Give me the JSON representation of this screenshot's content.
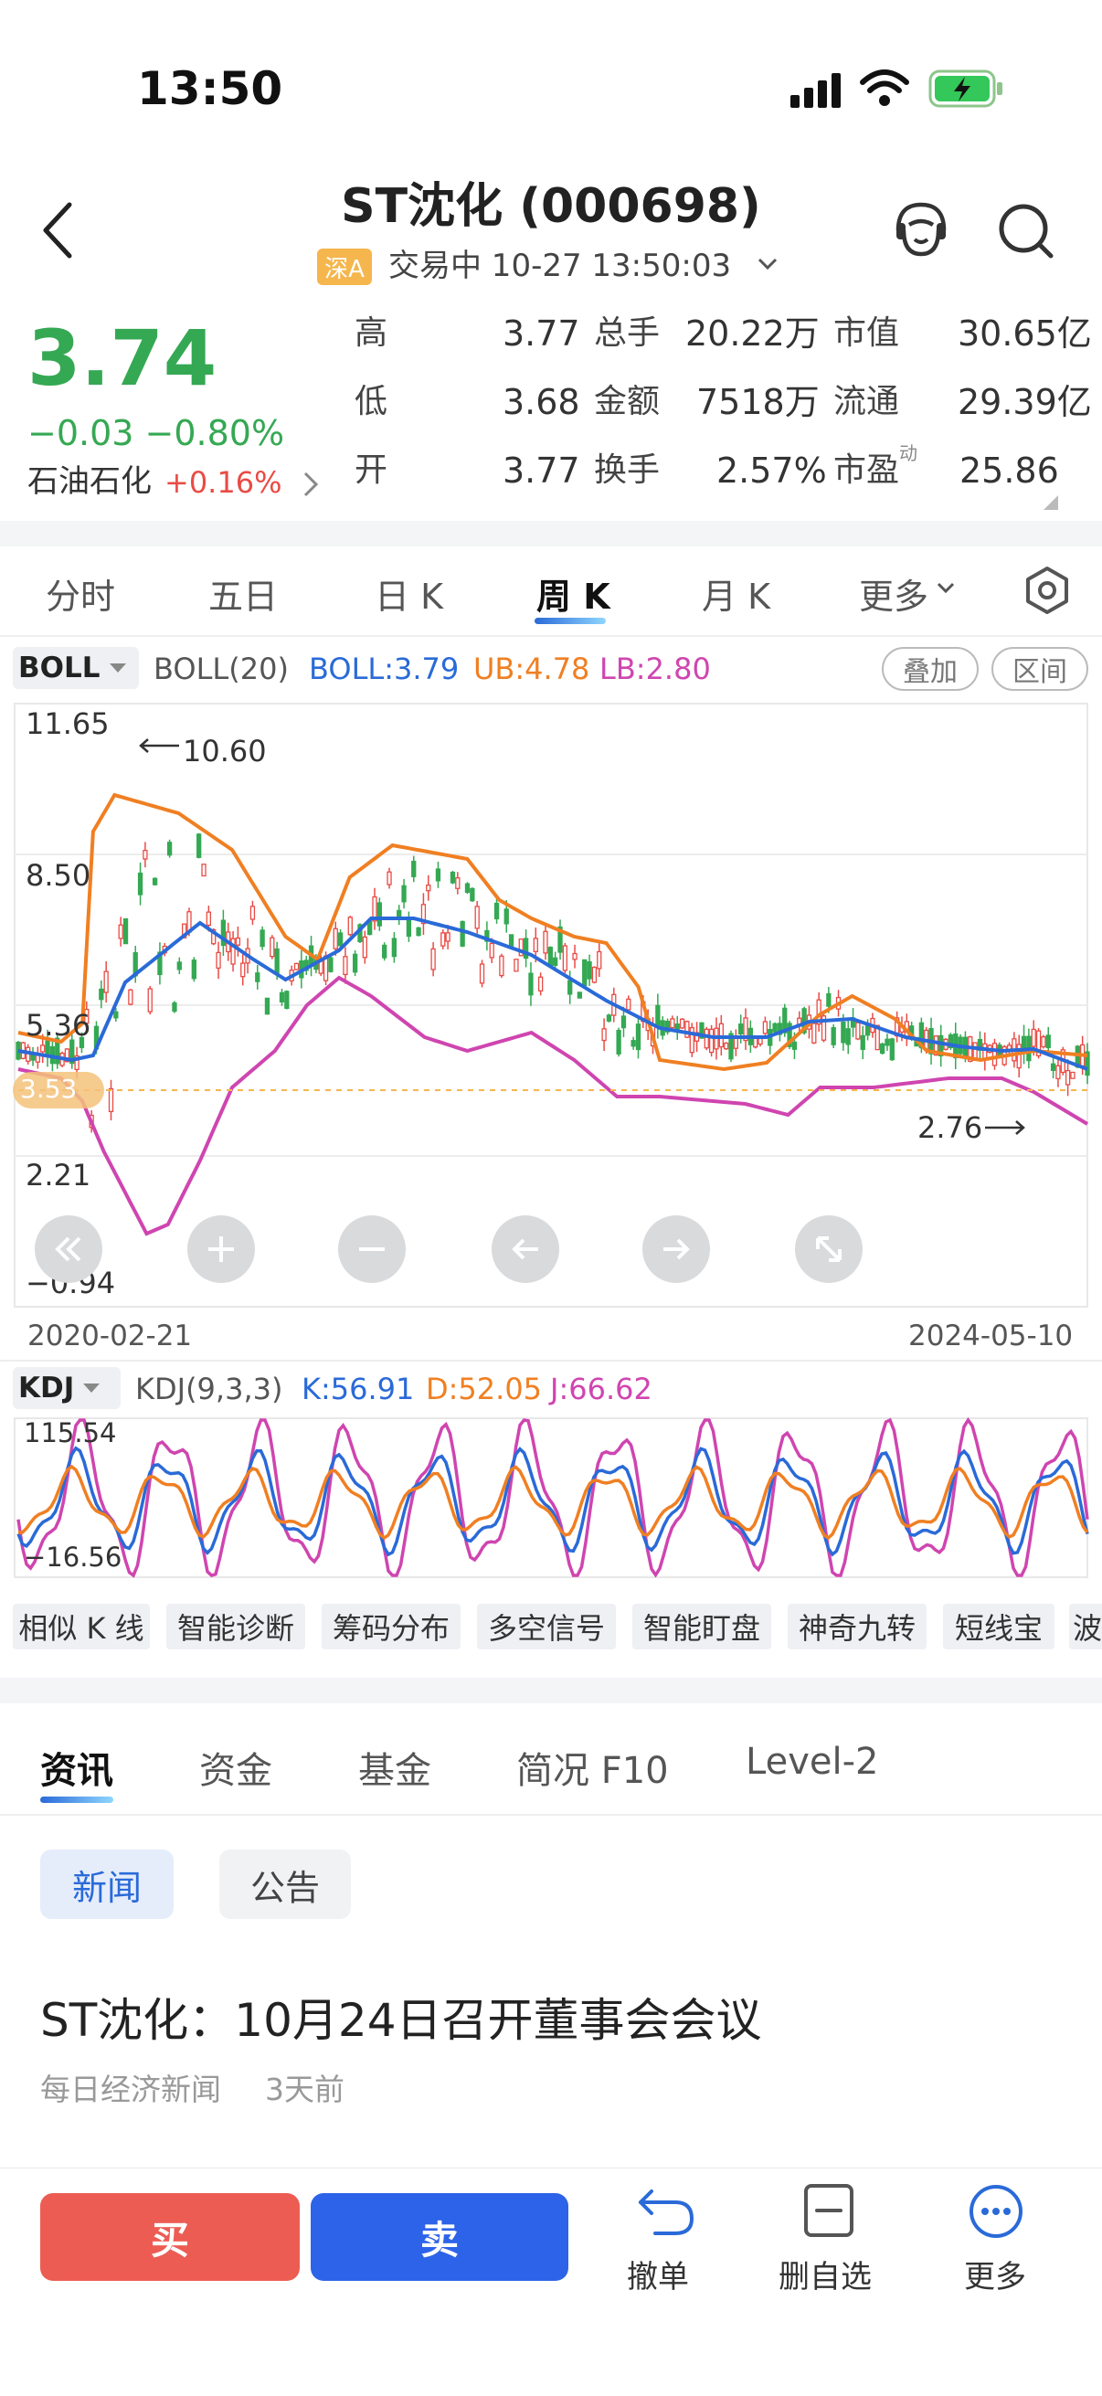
{
  "status": {
    "time": "13:50"
  },
  "header": {
    "title": "ST沈化 (000698)",
    "market_badge": "深A",
    "trade_status": "交易中  10-27 13:50:03"
  },
  "quote": {
    "price": "3.74",
    "change": "−0.03 −0.80%",
    "sector_name": "石油石化",
    "sector_change": "+0.16%",
    "rows": [
      {
        "l1": "高",
        "v1": "3.77",
        "l2": "总手",
        "v2": "20.22万",
        "l3": "市值",
        "v3": "30.65亿"
      },
      {
        "l1": "低",
        "v1": "3.68",
        "l2": "金额",
        "v2": "7518万",
        "l3": "流通",
        "v3": "29.39亿"
      },
      {
        "l1": "开",
        "v1": "3.77",
        "l2": "换手",
        "v2": "2.57%",
        "l3": "市盈",
        "l3sup": "动",
        "v3": "25.86"
      }
    ]
  },
  "period_tabs": [
    "分时",
    "五日",
    "日 K",
    "周 K",
    "月 K",
    "更多"
  ],
  "boll": {
    "selector": "BOLL",
    "params": "BOLL(20)",
    "mid": "BOLL:3.79",
    "ub": "UB:4.78",
    "lb": "LB:2.80",
    "chip_overlay": "叠加",
    "chip_range": "区间",
    "y_labels": [
      "11.65",
      "8.50",
      "5.36",
      "2.21",
      "−0.94"
    ],
    "max_label": "10.60",
    "min_label": "2.76",
    "current_label": "3.53",
    "date_start": "2020-02-21",
    "date_end": "2024-05-10"
  },
  "kdj": {
    "selector": "KDJ",
    "params": "KDJ(9,3,3)",
    "k": "K:56.91",
    "d": "D:52.05",
    "j": "J:66.62",
    "y_top": "115.54",
    "y_bottom": "−16.56"
  },
  "tools": [
    "相似 K 线",
    "智能诊断",
    "筹码分布",
    "多空信号",
    "智能盯盘",
    "神奇九转",
    "短线宝",
    "波"
  ],
  "news_tabs": [
    "资讯",
    "资金",
    "基金",
    "简况 F10",
    "Level-2"
  ],
  "news_pills": [
    "新闻",
    "公告"
  ],
  "news_item": {
    "headline": "ST沈化：10月24日召开董事会会议",
    "source": "每日经济新闻",
    "time": "3天前"
  },
  "bottom": {
    "buy": "买",
    "sell": "卖",
    "cancel": "撤单",
    "remove_watch": "删自选",
    "more": "更多"
  },
  "colors": {
    "up": "#e94b45",
    "down": "#35a853",
    "boll_mid": "#2a6ad8",
    "boll_ub": "#f07f22",
    "boll_lb": "#cf45b0",
    "buy": "#ec5c53",
    "sell": "#2d63e8"
  },
  "icons": [
    "back-chevron-icon",
    "customer-service-icon",
    "search-icon",
    "settings-hexagon-icon",
    "undo-icon",
    "remove-watchlist-icon",
    "more-dots-icon"
  ]
}
